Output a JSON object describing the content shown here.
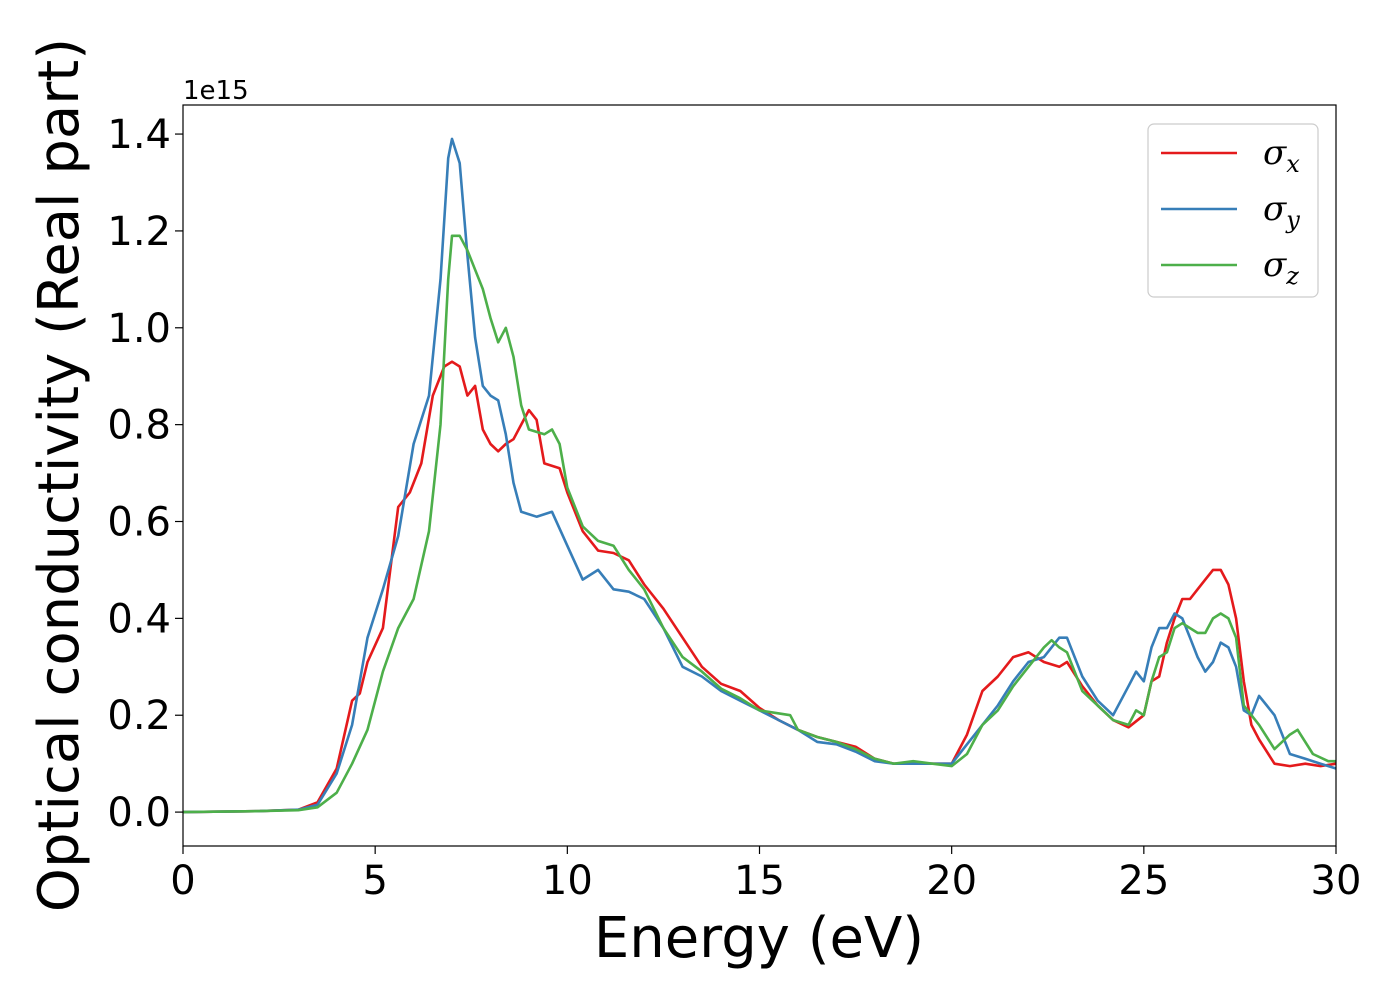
{
  "chart_data": {
    "type": "line",
    "title": "",
    "xlabel": "Energy (eV)",
    "ylabel": "Optical conductivity (Real part)",
    "y_offset_label": "1e15",
    "xlim": [
      0,
      30
    ],
    "ylim": [
      -0.07,
      1.46
    ],
    "x_ticks": [
      0,
      5,
      10,
      15,
      20,
      25,
      30
    ],
    "x_tick_labels": [
      "0",
      "5",
      "10",
      "15",
      "20",
      "25",
      "30"
    ],
    "y_ticks": [
      0.0,
      0.2,
      0.4,
      0.6,
      0.8,
      1.0,
      1.2,
      1.4
    ],
    "y_tick_labels": [
      "0.0",
      "0.2",
      "0.4",
      "0.6",
      "0.8",
      "1.0",
      "1.2",
      "1.4"
    ],
    "grid": false,
    "legend_position": "top-right",
    "series": [
      {
        "name": "σx",
        "symbol": "σ",
        "subscript": "x",
        "color": "#e41a1c",
        "points": [
          [
            0,
            0
          ],
          [
            2,
            0.002
          ],
          [
            3,
            0.005
          ],
          [
            3.5,
            0.02
          ],
          [
            4,
            0.09
          ],
          [
            4.4,
            0.23
          ],
          [
            4.6,
            0.245
          ],
          [
            4.8,
            0.31
          ],
          [
            5.2,
            0.38
          ],
          [
            5.6,
            0.63
          ],
          [
            5.9,
            0.66
          ],
          [
            6.2,
            0.72
          ],
          [
            6.5,
            0.86
          ],
          [
            6.8,
            0.92
          ],
          [
            7.0,
            0.93
          ],
          [
            7.2,
            0.92
          ],
          [
            7.4,
            0.86
          ],
          [
            7.6,
            0.88
          ],
          [
            7.8,
            0.79
          ],
          [
            8.0,
            0.76
          ],
          [
            8.2,
            0.745
          ],
          [
            8.4,
            0.76
          ],
          [
            8.6,
            0.77
          ],
          [
            8.8,
            0.8
          ],
          [
            9.0,
            0.83
          ],
          [
            9.2,
            0.81
          ],
          [
            9.4,
            0.72
          ],
          [
            9.8,
            0.71
          ],
          [
            10.0,
            0.66
          ],
          [
            10.4,
            0.58
          ],
          [
            10.8,
            0.54
          ],
          [
            11.2,
            0.535
          ],
          [
            11.6,
            0.52
          ],
          [
            12.0,
            0.47
          ],
          [
            12.5,
            0.42
          ],
          [
            13,
            0.36
          ],
          [
            13.5,
            0.3
          ],
          [
            14,
            0.265
          ],
          [
            14.5,
            0.25
          ],
          [
            15,
            0.215
          ],
          [
            15.5,
            0.19
          ],
          [
            16,
            0.17
          ],
          [
            16.5,
            0.155
          ],
          [
            17,
            0.145
          ],
          [
            17.5,
            0.135
          ],
          [
            18,
            0.11
          ],
          [
            18.5,
            0.1
          ],
          [
            19,
            0.1
          ],
          [
            19.5,
            0.1
          ],
          [
            20,
            0.1
          ],
          [
            20.4,
            0.16
          ],
          [
            20.8,
            0.25
          ],
          [
            21.2,
            0.28
          ],
          [
            21.6,
            0.32
          ],
          [
            22.0,
            0.33
          ],
          [
            22.4,
            0.31
          ],
          [
            22.8,
            0.3
          ],
          [
            23.0,
            0.31
          ],
          [
            23.4,
            0.26
          ],
          [
            23.8,
            0.22
          ],
          [
            24.2,
            0.19
          ],
          [
            24.6,
            0.175
          ],
          [
            25.0,
            0.2
          ],
          [
            25.2,
            0.27
          ],
          [
            25.4,
            0.28
          ],
          [
            25.6,
            0.35
          ],
          [
            25.8,
            0.4
          ],
          [
            26.0,
            0.44
          ],
          [
            26.2,
            0.44
          ],
          [
            26.4,
            0.46
          ],
          [
            26.6,
            0.48
          ],
          [
            26.8,
            0.5
          ],
          [
            27.0,
            0.5
          ],
          [
            27.2,
            0.47
          ],
          [
            27.4,
            0.4
          ],
          [
            27.6,
            0.27
          ],
          [
            27.8,
            0.18
          ],
          [
            28.0,
            0.15
          ],
          [
            28.4,
            0.1
          ],
          [
            28.8,
            0.095
          ],
          [
            29.2,
            0.1
          ],
          [
            29.6,
            0.095
          ],
          [
            30,
            0.1
          ]
        ]
      },
      {
        "name": "σy",
        "symbol": "σ",
        "subscript": "y",
        "color": "#377eb8",
        "points": [
          [
            0,
            0
          ],
          [
            2,
            0.002
          ],
          [
            3,
            0.005
          ],
          [
            3.5,
            0.015
          ],
          [
            4,
            0.08
          ],
          [
            4.4,
            0.18
          ],
          [
            4.8,
            0.36
          ],
          [
            5.2,
            0.46
          ],
          [
            5.6,
            0.57
          ],
          [
            6.0,
            0.76
          ],
          [
            6.4,
            0.86
          ],
          [
            6.7,
            1.1
          ],
          [
            6.9,
            1.35
          ],
          [
            7.0,
            1.39
          ],
          [
            7.2,
            1.34
          ],
          [
            7.4,
            1.15
          ],
          [
            7.6,
            0.98
          ],
          [
            7.8,
            0.88
          ],
          [
            8.0,
            0.86
          ],
          [
            8.2,
            0.85
          ],
          [
            8.4,
            0.78
          ],
          [
            8.6,
            0.68
          ],
          [
            8.8,
            0.62
          ],
          [
            9.0,
            0.615
          ],
          [
            9.2,
            0.61
          ],
          [
            9.6,
            0.62
          ],
          [
            10.0,
            0.55
          ],
          [
            10.4,
            0.48
          ],
          [
            10.8,
            0.5
          ],
          [
            11.2,
            0.46
          ],
          [
            11.6,
            0.455
          ],
          [
            12.0,
            0.44
          ],
          [
            12.5,
            0.38
          ],
          [
            13,
            0.3
          ],
          [
            13.5,
            0.28
          ],
          [
            14,
            0.25
          ],
          [
            14.5,
            0.23
          ],
          [
            15,
            0.21
          ],
          [
            15.5,
            0.19
          ],
          [
            16,
            0.17
          ],
          [
            16.5,
            0.145
          ],
          [
            17,
            0.14
          ],
          [
            17.5,
            0.125
          ],
          [
            18,
            0.105
          ],
          [
            18.5,
            0.1
          ],
          [
            19,
            0.1
          ],
          [
            19.5,
            0.1
          ],
          [
            20,
            0.1
          ],
          [
            20.4,
            0.14
          ],
          [
            20.8,
            0.18
          ],
          [
            21.2,
            0.22
          ],
          [
            21.6,
            0.27
          ],
          [
            22.0,
            0.31
          ],
          [
            22.4,
            0.32
          ],
          [
            22.8,
            0.36
          ],
          [
            23.0,
            0.36
          ],
          [
            23.4,
            0.28
          ],
          [
            23.8,
            0.23
          ],
          [
            24.2,
            0.2
          ],
          [
            24.6,
            0.26
          ],
          [
            24.8,
            0.29
          ],
          [
            25.0,
            0.27
          ],
          [
            25.2,
            0.34
          ],
          [
            25.4,
            0.38
          ],
          [
            25.6,
            0.38
          ],
          [
            25.8,
            0.41
          ],
          [
            26.0,
            0.4
          ],
          [
            26.2,
            0.36
          ],
          [
            26.4,
            0.32
          ],
          [
            26.6,
            0.29
          ],
          [
            26.8,
            0.31
          ],
          [
            27.0,
            0.35
          ],
          [
            27.2,
            0.34
          ],
          [
            27.4,
            0.3
          ],
          [
            27.6,
            0.21
          ],
          [
            27.8,
            0.2
          ],
          [
            28.0,
            0.24
          ],
          [
            28.2,
            0.22
          ],
          [
            28.4,
            0.2
          ],
          [
            28.8,
            0.12
          ],
          [
            29.2,
            0.11
          ],
          [
            29.6,
            0.1
          ],
          [
            30,
            0.09
          ]
        ]
      },
      {
        "name": "σz",
        "symbol": "σ",
        "subscript": "z",
        "color": "#4daf4a",
        "points": [
          [
            0,
            0
          ],
          [
            2,
            0.002
          ],
          [
            3,
            0.004
          ],
          [
            3.5,
            0.01
          ],
          [
            4,
            0.04
          ],
          [
            4.4,
            0.1
          ],
          [
            4.8,
            0.17
          ],
          [
            5.2,
            0.29
          ],
          [
            5.6,
            0.38
          ],
          [
            6.0,
            0.44
          ],
          [
            6.4,
            0.58
          ],
          [
            6.7,
            0.8
          ],
          [
            6.9,
            1.1
          ],
          [
            7.0,
            1.19
          ],
          [
            7.2,
            1.19
          ],
          [
            7.4,
            1.16
          ],
          [
            7.6,
            1.12
          ],
          [
            7.8,
            1.08
          ],
          [
            8.0,
            1.02
          ],
          [
            8.2,
            0.97
          ],
          [
            8.4,
            1.0
          ],
          [
            8.6,
            0.94
          ],
          [
            8.8,
            0.84
          ],
          [
            9.0,
            0.79
          ],
          [
            9.4,
            0.78
          ],
          [
            9.6,
            0.79
          ],
          [
            9.8,
            0.76
          ],
          [
            10.0,
            0.67
          ],
          [
            10.4,
            0.59
          ],
          [
            10.8,
            0.56
          ],
          [
            11.2,
            0.55
          ],
          [
            11.6,
            0.5
          ],
          [
            12.0,
            0.46
          ],
          [
            12.5,
            0.38
          ],
          [
            13,
            0.32
          ],
          [
            13.5,
            0.29
          ],
          [
            14,
            0.255
          ],
          [
            14.5,
            0.235
          ],
          [
            15,
            0.21
          ],
          [
            15.4,
            0.205
          ],
          [
            15.8,
            0.2
          ],
          [
            16,
            0.17
          ],
          [
            16.5,
            0.155
          ],
          [
            17,
            0.145
          ],
          [
            17.5,
            0.13
          ],
          [
            18,
            0.11
          ],
          [
            18.5,
            0.1
          ],
          [
            19,
            0.105
          ],
          [
            19.5,
            0.1
          ],
          [
            20,
            0.095
          ],
          [
            20.4,
            0.12
          ],
          [
            20.8,
            0.18
          ],
          [
            21.2,
            0.21
          ],
          [
            21.6,
            0.26
          ],
          [
            22.0,
            0.3
          ],
          [
            22.4,
            0.34
          ],
          [
            22.6,
            0.355
          ],
          [
            22.8,
            0.34
          ],
          [
            23.0,
            0.33
          ],
          [
            23.4,
            0.25
          ],
          [
            23.8,
            0.22
          ],
          [
            24.2,
            0.19
          ],
          [
            24.6,
            0.18
          ],
          [
            24.8,
            0.21
          ],
          [
            25.0,
            0.2
          ],
          [
            25.2,
            0.27
          ],
          [
            25.4,
            0.32
          ],
          [
            25.6,
            0.33
          ],
          [
            25.8,
            0.38
          ],
          [
            26.0,
            0.39
          ],
          [
            26.2,
            0.38
          ],
          [
            26.4,
            0.37
          ],
          [
            26.6,
            0.37
          ],
          [
            26.8,
            0.4
          ],
          [
            27.0,
            0.41
          ],
          [
            27.2,
            0.4
          ],
          [
            27.4,
            0.36
          ],
          [
            27.6,
            0.22
          ],
          [
            27.8,
            0.2
          ],
          [
            28.0,
            0.18
          ],
          [
            28.4,
            0.13
          ],
          [
            28.8,
            0.16
          ],
          [
            29.0,
            0.17
          ],
          [
            29.4,
            0.12
          ],
          [
            29.8,
            0.105
          ],
          [
            30,
            0.105
          ]
        ]
      }
    ]
  }
}
